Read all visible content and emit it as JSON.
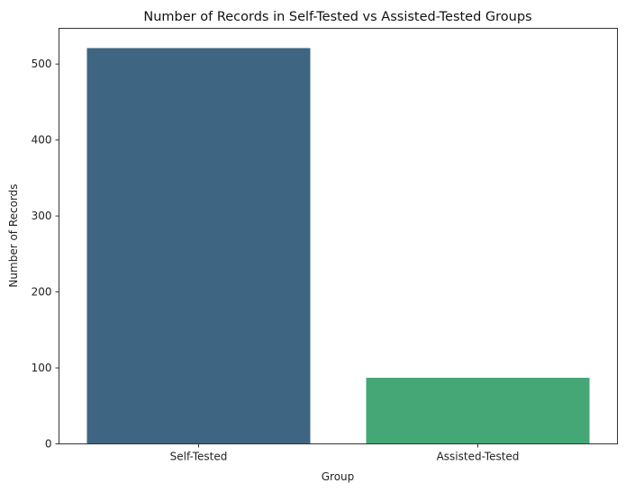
{
  "chart_data": {
    "type": "bar",
    "title": "Number of Records in Self-Tested vs Assisted-Tested Groups",
    "xlabel": "Group",
    "ylabel": "Number of Records",
    "categories": [
      "Self-Tested",
      "Assisted-Tested"
    ],
    "values": [
      521,
      87
    ],
    "colors": [
      "#3e6682",
      "#44a775"
    ],
    "ylim": [
      0,
      547
    ],
    "yticks": [
      0,
      100,
      200,
      300,
      400,
      500
    ],
    "grid": false,
    "legend": "none"
  }
}
